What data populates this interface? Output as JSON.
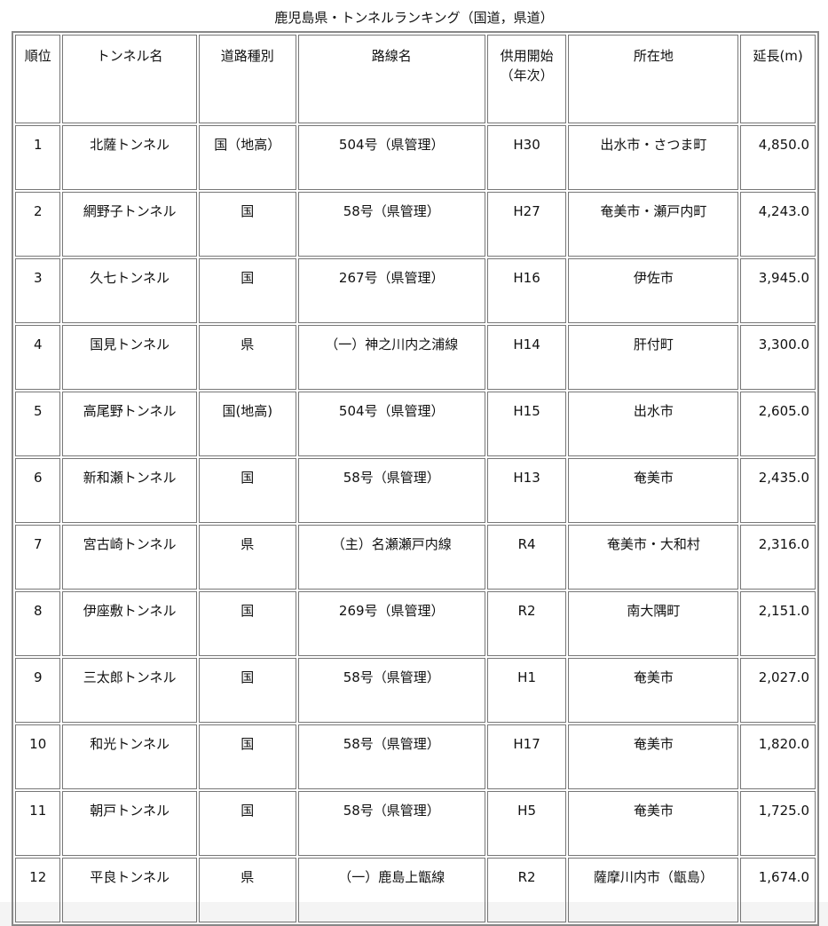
{
  "title": "鹿児島県・トンネルランキング（国道，県道）",
  "headers": [
    "順位",
    "トンネル名",
    "道路種別",
    "路線名",
    "供用開始\n（年次）",
    "所在地",
    "延長(m)"
  ],
  "rows": [
    [
      "1",
      "北薩トンネル",
      "国（地高）",
      "504号（県管理）",
      "H30",
      "出水市・さつま町",
      "4,850.0"
    ],
    [
      "2",
      "網野子トンネル",
      "国",
      "58号（県管理）",
      "H27",
      "奄美市・瀬戸内町",
      "4,243.0"
    ],
    [
      "3",
      "久七トンネル",
      "国",
      "267号（県管理）",
      "H16",
      "伊佐市",
      "3,945.0"
    ],
    [
      "4",
      "国見トンネル",
      "県",
      "（一）神之川内之浦線",
      "H14",
      "肝付町",
      "3,300.0"
    ],
    [
      "5",
      "高尾野トンネル",
      "国(地高)",
      "504号（県管理）",
      "H15",
      "出水市",
      "2,605.0"
    ],
    [
      "6",
      "新和瀬トンネル",
      "国",
      "58号（県管理）",
      "H13",
      "奄美市",
      "2,435.0"
    ],
    [
      "7",
      "宮古崎トンネル",
      "県",
      "（主）名瀬瀬戸内線",
      "R4",
      "奄美市・大和村",
      "2,316.0"
    ],
    [
      "8",
      "伊座敷トンネル",
      "国",
      "269号（県管理）",
      "R2",
      "南大隅町",
      "2,151.0"
    ],
    [
      "9",
      "三太郎トンネル",
      "国",
      "58号（県管理）",
      "H1",
      "奄美市",
      "2,027.0"
    ],
    [
      "10",
      "和光トンネル",
      "国",
      "58号（県管理）",
      "H17",
      "奄美市",
      "1,820.0"
    ],
    [
      "11",
      "朝戸トンネル",
      "国",
      "58号（県管理）",
      "H5",
      "奄美市",
      "1,725.0"
    ],
    [
      "12",
      "平良トンネル",
      "県",
      "（一）鹿島上甑線",
      "R2",
      "薩摩川内市（甑島）",
      "1,674.0"
    ]
  ]
}
